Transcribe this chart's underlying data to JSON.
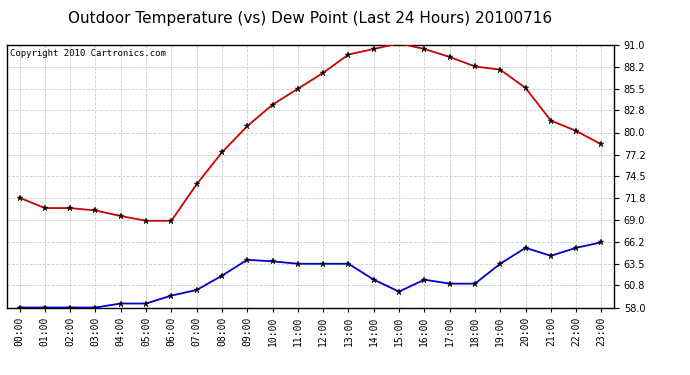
{
  "title": "Outdoor Temperature (vs) Dew Point (Last 24 Hours) 20100716",
  "copyright_text": "Copyright 2010 Cartronics.com",
  "x_labels": [
    "00:00",
    "01:00",
    "02:00",
    "03:00",
    "04:00",
    "05:00",
    "06:00",
    "07:00",
    "08:00",
    "09:00",
    "10:00",
    "11:00",
    "12:00",
    "13:00",
    "14:00",
    "15:00",
    "16:00",
    "17:00",
    "18:00",
    "19:00",
    "20:00",
    "21:00",
    "22:00",
    "23:00"
  ],
  "temp_data": [
    71.8,
    70.5,
    70.5,
    70.2,
    69.5,
    68.9,
    68.9,
    73.5,
    77.5,
    80.8,
    83.5,
    85.5,
    87.5,
    89.8,
    90.5,
    91.2,
    90.5,
    89.5,
    88.3,
    87.9,
    85.6,
    81.5,
    80.2,
    78.5
  ],
  "dew_data": [
    58.0,
    58.0,
    58.0,
    58.0,
    58.5,
    58.5,
    59.5,
    60.2,
    62.0,
    64.0,
    63.8,
    63.5,
    63.5,
    63.5,
    61.5,
    60.0,
    61.5,
    61.0,
    61.0,
    63.5,
    65.5,
    64.5,
    65.5,
    66.2
  ],
  "temp_color": "#cc0000",
  "dew_color": "#0000cc",
  "ylim_min": 58.0,
  "ylim_max": 91.0,
  "yticks": [
    58.0,
    60.8,
    63.5,
    66.2,
    69.0,
    71.8,
    74.5,
    77.2,
    80.0,
    82.8,
    85.5,
    88.2,
    91.0
  ],
  "bg_color": "#ffffff",
  "grid_color": "#cccccc",
  "title_fontsize": 11,
  "copyright_fontsize": 6.5,
  "tick_fontsize": 7
}
